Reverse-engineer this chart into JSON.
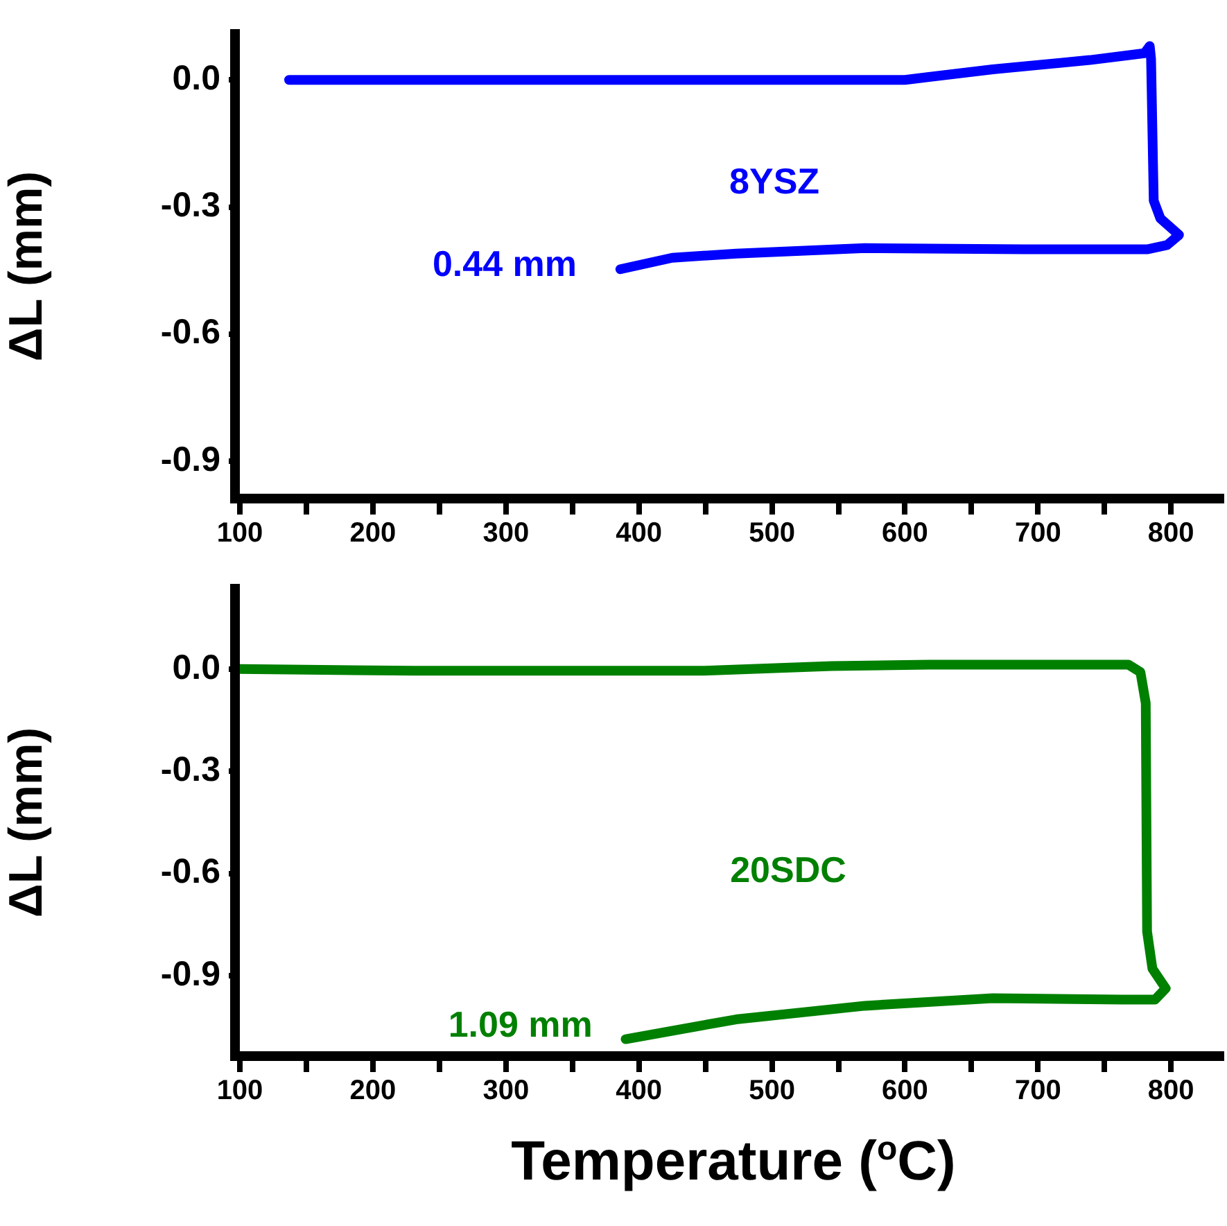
{
  "chart_data": [
    {
      "type": "line",
      "ylabel": "ΔL (mm)",
      "xlim": [
        100,
        840
      ],
      "ylim": [
        -1.0,
        0.12
      ],
      "xticks": [
        100,
        {
          "value": 150,
          "label": null
        },
        200,
        {
          "value": 250,
          "label": null
        },
        300,
        {
          "value": 350,
          "label": null
        },
        400,
        {
          "value": 450,
          "label": null
        },
        500,
        {
          "value": 550,
          "label": null
        },
        600,
        {
          "value": 650,
          "label": null
        },
        700,
        {
          "value": 750,
          "label": null
        },
        800
      ],
      "yticks": [
        {
          "value": 0,
          "label": "0.0"
        },
        {
          "value": -0.3,
          "label": "-0.3"
        },
        {
          "value": -0.6,
          "label": "-0.6"
        },
        {
          "value": -0.9,
          "label": "-0.9"
        }
      ],
      "grid": false,
      "legend": false,
      "marker": "none",
      "line_style": "solid",
      "series": [
        {
          "color": "#0000ff",
          "x": [
            137,
            600,
            618,
            666,
            739,
            780,
            784,
            785,
            787,
            792,
            806,
            797,
            782,
            690,
            570,
            473,
            425,
            386
          ],
          "values": [
            0,
            0,
            0.007,
            0.025,
            0.047,
            0.063,
            0.08,
            0.05,
            -0.285,
            -0.327,
            -0.366,
            -0.39,
            -0.4,
            -0.4,
            -0.397,
            -0.41,
            -0.42,
            -0.447
          ]
        }
      ],
      "annotations": [
        "8YSZ",
        "0.44 mm"
      ]
    },
    {
      "type": "line",
      "ylabel": "ΔL (mm)",
      "xlabel": "Temperature ($^{o}$C)",
      "xlim": [
        100,
        840
      ],
      "ylim": [
        -1.15,
        0.25
      ],
      "xticks": [
        100,
        {
          "value": 150,
          "label": null
        },
        200,
        {
          "value": 250,
          "label": null
        },
        300,
        {
          "value": 350,
          "label": null
        },
        400,
        {
          "value": 450,
          "label": null
        },
        500,
        {
          "value": 550,
          "label": null
        },
        600,
        {
          "value": 650,
          "label": null
        },
        700,
        {
          "value": 750,
          "label": null
        },
        800
      ],
      "yticks": [
        {
          "value": 0,
          "label": "0.0"
        },
        {
          "value": -0.3,
          "label": "-0.3"
        },
        {
          "value": -0.6,
          "label": "-0.6"
        },
        {
          "value": -0.9,
          "label": "-0.9"
        }
      ],
      "grid": false,
      "legend": false,
      "marker": "none",
      "line_style": "solid",
      "series": [
        {
          "color": "#008000",
          "x": [
            100,
            231,
            449,
            545,
            618,
            768,
            777,
            781,
            782,
            786,
            796,
            788,
            763,
            666,
            570,
            473,
            390
          ],
          "values": [
            0,
            -0.005,
            -0.005,
            0.009,
            0.013,
            0.013,
            -0.009,
            -0.1,
            -0.77,
            -0.879,
            -0.937,
            -0.97,
            -0.97,
            -0.966,
            -0.988,
            -1.028,
            -1.086
          ]
        }
      ],
      "annotations": [
        "20SDC",
        "1.09 mm"
      ]
    }
  ]
}
